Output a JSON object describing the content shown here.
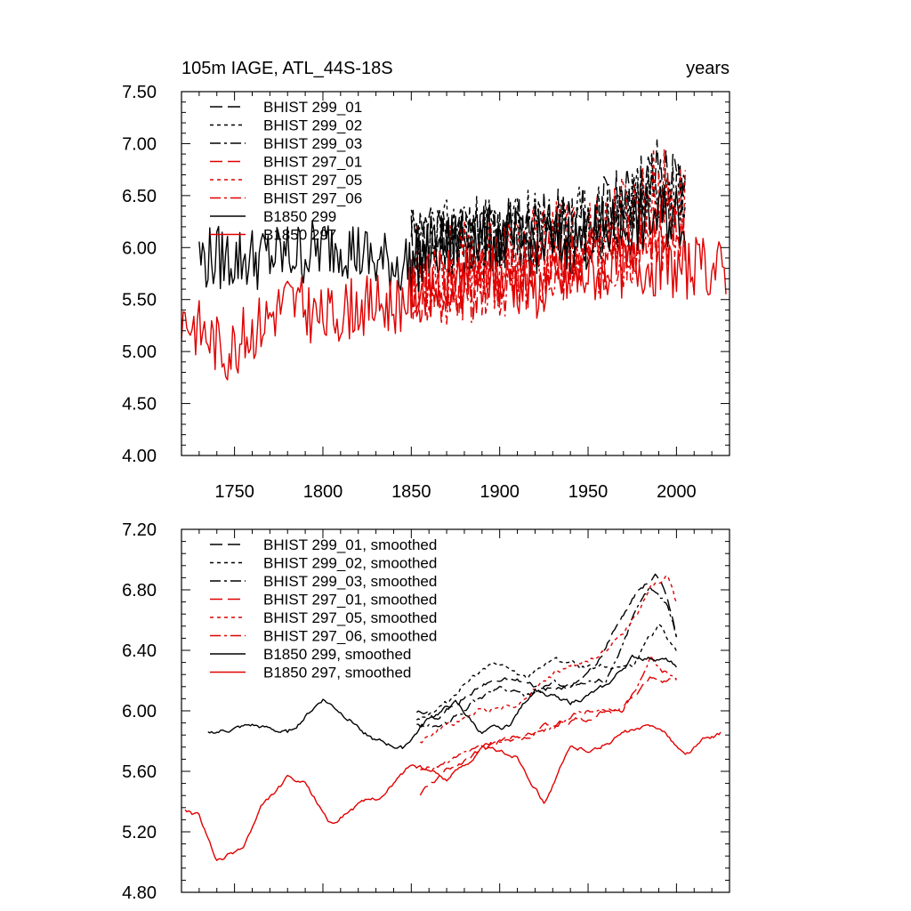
{
  "chart_data": [
    {
      "type": "line",
      "title": "105m IAGE, ATL_44S-18S",
      "right_title": "years",
      "xlabel": "",
      "ylabel": "",
      "xlim": [
        1720,
        2030
      ],
      "ylim": [
        4.0,
        7.5
      ],
      "x_ticks": [
        1750,
        1800,
        1850,
        1900,
        1950,
        2000
      ],
      "x_tick_labels": [
        "1750",
        "1800",
        "1850",
        "1900",
        "1950",
        "2000"
      ],
      "y_ticks": [
        4.0,
        4.5,
        5.0,
        5.5,
        6.0,
        6.5,
        7.0,
        7.5
      ],
      "y_tick_labels": [
        "4.00",
        "4.50",
        "5.00",
        "5.50",
        "6.00",
        "6.50",
        "7.00",
        "7.50"
      ],
      "legend_position": "top-left",
      "series": [
        {
          "name": "BHIST 299_01",
          "color": "#000000",
          "dash": "long-dash",
          "start": 1850,
          "end": 2005,
          "base": [
            [
              1850,
              6.0
            ],
            [
              1880,
              6.1
            ],
            [
              1910,
              6.15
            ],
            [
              1940,
              6.2
            ],
            [
              1970,
              6.4
            ],
            [
              1990,
              6.75
            ],
            [
              2005,
              6.5
            ]
          ],
          "noise": 0.38,
          "seed": 11
        },
        {
          "name": "BHIST 299_02",
          "color": "#000000",
          "dash": "short-dash",
          "start": 1850,
          "end": 2005,
          "base": [
            [
              1850,
              6.05
            ],
            [
              1880,
              6.15
            ],
            [
              1910,
              6.2
            ],
            [
              1940,
              6.2
            ],
            [
              1970,
              6.35
            ],
            [
              1990,
              6.6
            ],
            [
              2005,
              6.45
            ]
          ],
          "noise": 0.36,
          "seed": 23
        },
        {
          "name": "BHIST 299_03",
          "color": "#000000",
          "dash": "dash-dot",
          "start": 1850,
          "end": 2005,
          "base": [
            [
              1850,
              6.0
            ],
            [
              1880,
              6.05
            ],
            [
              1910,
              6.1
            ],
            [
              1940,
              6.15
            ],
            [
              1970,
              6.3
            ],
            [
              1990,
              6.6
            ],
            [
              2005,
              6.4
            ]
          ],
          "noise": 0.37,
          "seed": 37
        },
        {
          "name": "BHIST 297_01",
          "color": "#e00000",
          "dash": "long-dash",
          "start": 1850,
          "end": 2005,
          "base": [
            [
              1850,
              5.55
            ],
            [
              1880,
              5.6
            ],
            [
              1910,
              5.75
            ],
            [
              1940,
              5.85
            ],
            [
              1970,
              6.0
            ],
            [
              1990,
              6.2
            ],
            [
              2005,
              6.1
            ]
          ],
          "noise": 0.35,
          "seed": 41
        },
        {
          "name": "BHIST 297_05",
          "color": "#e00000",
          "dash": "short-dash",
          "start": 1850,
          "end": 2005,
          "base": [
            [
              1850,
              5.8
            ],
            [
              1880,
              5.85
            ],
            [
              1910,
              5.95
            ],
            [
              1940,
              6.05
            ],
            [
              1970,
              6.3
            ],
            [
              1990,
              6.6
            ],
            [
              2005,
              6.4
            ]
          ],
          "noise": 0.42,
          "seed": 53
        },
        {
          "name": "BHIST 297_06",
          "color": "#e00000",
          "dash": "dash-dot",
          "start": 1850,
          "end": 2005,
          "base": [
            [
              1850,
              5.6
            ],
            [
              1880,
              5.6
            ],
            [
              1910,
              5.7
            ],
            [
              1940,
              5.8
            ],
            [
              1970,
              5.95
            ],
            [
              1990,
              6.1
            ],
            [
              2005,
              6.05
            ]
          ],
          "noise": 0.34,
          "seed": 67
        },
        {
          "name": "B1850 299",
          "color": "#000000",
          "dash": "solid",
          "start": 1730,
          "end": 2005,
          "base": [
            [
              1730,
              5.9
            ],
            [
              1760,
              5.9
            ],
            [
              1790,
              5.95
            ],
            [
              1810,
              6.05
            ],
            [
              1830,
              5.85
            ],
            [
              1850,
              5.85
            ],
            [
              1880,
              6.1
            ],
            [
              1910,
              6.05
            ],
            [
              1940,
              6.05
            ],
            [
              1970,
              6.2
            ],
            [
              1990,
              6.3
            ],
            [
              2005,
              6.3
            ]
          ],
          "noise": 0.32,
          "seed": 79
        },
        {
          "name": "B1850 297",
          "color": "#e00000",
          "dash": "solid",
          "start": 1720,
          "end": 2028,
          "base": [
            [
              1720,
              5.35
            ],
            [
              1735,
              5.15
            ],
            [
              1745,
              5.0
            ],
            [
              1760,
              5.2
            ],
            [
              1780,
              5.5
            ],
            [
              1800,
              5.3
            ],
            [
              1820,
              5.45
            ],
            [
              1840,
              5.45
            ],
            [
              1860,
              5.65
            ],
            [
              1890,
              5.75
            ],
            [
              1920,
              5.6
            ],
            [
              1950,
              5.75
            ],
            [
              1980,
              5.85
            ],
            [
              2000,
              5.8
            ],
            [
              2028,
              5.8
            ]
          ],
          "noise": 0.3,
          "seed": 83
        }
      ]
    },
    {
      "type": "line",
      "title": "",
      "xlabel": "",
      "ylabel": "",
      "xlim": [
        1720,
        2030
      ],
      "ylim": [
        4.8,
        7.2
      ],
      "x_ticks": [
        1750,
        1800,
        1850,
        1900,
        1950,
        2000
      ],
      "x_tick_labels": [],
      "y_ticks": [
        4.8,
        5.2,
        5.6,
        6.0,
        6.4,
        6.8,
        7.2
      ],
      "y_tick_labels": [
        "4.80",
        "5.20",
        "5.60",
        "6.00",
        "6.40",
        "6.80",
        "7.20"
      ],
      "legend_position": "top-left",
      "series": [
        {
          "name": "BHIST 299_01, smoothed",
          "color": "#000000",
          "dash": "long-dash",
          "start": 1853,
          "end": 2000,
          "base": [
            [
              1853,
              6.0
            ],
            [
              1865,
              5.95
            ],
            [
              1880,
              6.1
            ],
            [
              1895,
              6.2
            ],
            [
              1910,
              6.2
            ],
            [
              1925,
              6.15
            ],
            [
              1940,
              6.15
            ],
            [
              1955,
              6.3
            ],
            [
              1965,
              6.55
            ],
            [
              1978,
              6.8
            ],
            [
              1988,
              6.9
            ],
            [
              1995,
              6.75
            ],
            [
              2000,
              6.5
            ]
          ],
          "noise": 0.07,
          "seed": 101
        },
        {
          "name": "BHIST 299_02, smoothed",
          "color": "#000000",
          "dash": "short-dash",
          "start": 1853,
          "end": 2000,
          "base": [
            [
              1853,
              5.95
            ],
            [
              1870,
              6.05
            ],
            [
              1885,
              6.25
            ],
            [
              1900,
              6.3
            ],
            [
              1915,
              6.2
            ],
            [
              1930,
              6.35
            ],
            [
              1945,
              6.3
            ],
            [
              1960,
              6.3
            ],
            [
              1975,
              6.3
            ],
            [
              1990,
              6.55
            ],
            [
              2000,
              6.4
            ]
          ],
          "noise": 0.07,
          "seed": 113
        },
        {
          "name": "BHIST 299_03, smoothed",
          "color": "#000000",
          "dash": "dash-dot",
          "start": 1853,
          "end": 2000,
          "base": [
            [
              1853,
              5.9
            ],
            [
              1870,
              5.9
            ],
            [
              1885,
              6.05
            ],
            [
              1900,
              6.15
            ],
            [
              1915,
              6.1
            ],
            [
              1930,
              6.2
            ],
            [
              1945,
              6.15
            ],
            [
              1960,
              6.2
            ],
            [
              1975,
              6.6
            ],
            [
              1985,
              6.8
            ],
            [
              1995,
              6.7
            ],
            [
              2000,
              6.5
            ]
          ],
          "noise": 0.07,
          "seed": 127
        },
        {
          "name": "BHIST 297_01, smoothed",
          "color": "#e00000",
          "dash": "long-dash",
          "start": 1855,
          "end": 2000,
          "base": [
            [
              1855,
              5.45
            ],
            [
              1870,
              5.6
            ],
            [
              1890,
              5.75
            ],
            [
              1910,
              5.85
            ],
            [
              1930,
              5.9
            ],
            [
              1950,
              5.95
            ],
            [
              1970,
              6.05
            ],
            [
              1985,
              6.2
            ],
            [
              2000,
              6.2
            ]
          ],
          "noise": 0.07,
          "seed": 131
        },
        {
          "name": "BHIST 297_05, smoothed",
          "color": "#e00000",
          "dash": "short-dash",
          "start": 1855,
          "end": 2000,
          "base": [
            [
              1855,
              5.8
            ],
            [
              1870,
              5.9
            ],
            [
              1890,
              6.0
            ],
            [
              1910,
              6.05
            ],
            [
              1925,
              6.2
            ],
            [
              1940,
              6.3
            ],
            [
              1955,
              6.35
            ],
            [
              1970,
              6.5
            ],
            [
              1985,
              6.8
            ],
            [
              1995,
              6.9
            ],
            [
              2000,
              6.7
            ]
          ],
          "noise": 0.07,
          "seed": 149
        },
        {
          "name": "BHIST 297_06, smoothed",
          "color": "#e00000",
          "dash": "dash-dot",
          "start": 1855,
          "end": 2000,
          "base": [
            [
              1855,
              5.6
            ],
            [
              1870,
              5.65
            ],
            [
              1890,
              5.75
            ],
            [
              1910,
              5.8
            ],
            [
              1930,
              5.9
            ],
            [
              1950,
              6.0
            ],
            [
              1970,
              6.0
            ],
            [
              1985,
              6.35
            ],
            [
              2000,
              6.2
            ]
          ],
          "noise": 0.07,
          "seed": 157
        },
        {
          "name": "B1850 299, smoothed",
          "color": "#000000",
          "dash": "solid",
          "start": 1735,
          "end": 2000,
          "base": [
            [
              1735,
              5.85
            ],
            [
              1760,
              5.9
            ],
            [
              1780,
              5.85
            ],
            [
              1800,
              6.08
            ],
            [
              1815,
              5.95
            ],
            [
              1830,
              5.8
            ],
            [
              1845,
              5.75
            ],
            [
              1860,
              5.95
            ],
            [
              1875,
              6.05
            ],
            [
              1890,
              5.85
            ],
            [
              1905,
              5.9
            ],
            [
              1920,
              6.15
            ],
            [
              1940,
              6.05
            ],
            [
              1960,
              6.15
            ],
            [
              1975,
              6.35
            ],
            [
              1990,
              6.35
            ],
            [
              2000,
              6.3
            ]
          ],
          "noise": 0.06,
          "seed": 163
        },
        {
          "name": "B1850 297, smoothed",
          "color": "#e00000",
          "dash": "solid",
          "start": 1722,
          "end": 2025,
          "base": [
            [
              1722,
              5.35
            ],
            [
              1730,
              5.3
            ],
            [
              1740,
              5.0
            ],
            [
              1755,
              5.1
            ],
            [
              1765,
              5.35
            ],
            [
              1780,
              5.55
            ],
            [
              1790,
              5.5
            ],
            [
              1805,
              5.25
            ],
            [
              1815,
              5.35
            ],
            [
              1835,
              5.45
            ],
            [
              1850,
              5.65
            ],
            [
              1870,
              5.55
            ],
            [
              1890,
              5.75
            ],
            [
              1910,
              5.7
            ],
            [
              1925,
              5.4
            ],
            [
              1940,
              5.75
            ],
            [
              1955,
              5.75
            ],
            [
              1970,
              5.85
            ],
            [
              1990,
              5.9
            ],
            [
              2005,
              5.7
            ],
            [
              2015,
              5.8
            ],
            [
              2025,
              5.85
            ]
          ],
          "noise": 0.06,
          "seed": 173
        }
      ]
    }
  ]
}
